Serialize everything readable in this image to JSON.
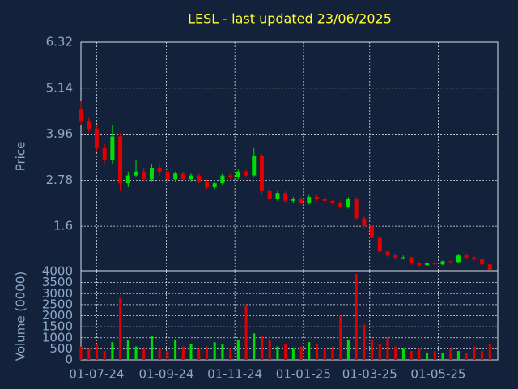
{
  "chart_data": {
    "type": "candlestick",
    "title": "LESL - last updated 23/06/2025",
    "ylabel": "Price",
    "y2label": "Volume (0000)",
    "up_color": "#00e000",
    "down_color": "#e00000",
    "grid": true,
    "xlim": [
      "2024-06-17",
      "2025-06-23"
    ],
    "xticks": [
      {
        "value": "2024-07-01",
        "label": "01-07-24"
      },
      {
        "value": "2024-09-01",
        "label": "01-09-24"
      },
      {
        "value": "2024-11-01",
        "label": "01-11-24"
      },
      {
        "value": "2025-01-01",
        "label": "01-01-25"
      },
      {
        "value": "2025-03-01",
        "label": "01-03-25"
      },
      {
        "value": "2025-05-01",
        "label": "01-05-25"
      }
    ],
    "ylim": [
      0.46,
      6.32
    ],
    "yticks": [
      1.6,
      2.78,
      3.96,
      5.14,
      6.32
    ],
    "y2lim": [
      0,
      4000
    ],
    "y2ticks": [
      0,
      500,
      1000,
      1500,
      2000,
      2500,
      3000,
      3500,
      4000
    ],
    "x": [
      "2024-06-17",
      "2024-06-24",
      "2024-07-01",
      "2024-07-08",
      "2024-07-15",
      "2024-07-22",
      "2024-07-29",
      "2024-08-05",
      "2024-08-12",
      "2024-08-19",
      "2024-08-26",
      "2024-09-02",
      "2024-09-09",
      "2024-09-16",
      "2024-09-23",
      "2024-09-30",
      "2024-10-07",
      "2024-10-14",
      "2024-10-21",
      "2024-10-28",
      "2024-11-04",
      "2024-11-11",
      "2024-11-18",
      "2024-11-25",
      "2024-12-02",
      "2024-12-09",
      "2024-12-16",
      "2024-12-23",
      "2024-12-30",
      "2025-01-06",
      "2025-01-13",
      "2025-01-20",
      "2025-01-27",
      "2025-02-03",
      "2025-02-10",
      "2025-02-17",
      "2025-02-24",
      "2025-03-03",
      "2025-03-10",
      "2025-03-17",
      "2025-03-24",
      "2025-03-31",
      "2025-04-07",
      "2025-04-14",
      "2025-04-21",
      "2025-04-28",
      "2025-05-05",
      "2025-05-12",
      "2025-05-19",
      "2025-05-26",
      "2025-06-02",
      "2025-06-09",
      "2025-06-16"
    ],
    "open": [
      4.6,
      4.3,
      4.1,
      3.6,
      3.3,
      3.9,
      2.7,
      2.9,
      3.0,
      2.8,
      3.1,
      3.0,
      2.8,
      2.95,
      2.8,
      2.9,
      2.75,
      2.6,
      2.7,
      2.9,
      2.85,
      3.0,
      2.9,
      3.4,
      2.5,
      2.3,
      2.45,
      2.25,
      2.3,
      2.2,
      2.35,
      2.3,
      2.25,
      2.2,
      2.1,
      2.3,
      1.8,
      1.6,
      1.3,
      0.95,
      0.85,
      0.8,
      0.8,
      0.65,
      0.6,
      0.65,
      0.62,
      0.7,
      0.68,
      0.85,
      0.8,
      0.75,
      0.62
    ],
    "high": [
      4.8,
      4.4,
      4.2,
      3.7,
      4.2,
      4.0,
      3.0,
      3.3,
      3.1,
      3.2,
      3.2,
      3.1,
      3.0,
      3.0,
      2.95,
      2.95,
      2.8,
      2.75,
      2.95,
      2.95,
      3.05,
      3.05,
      3.6,
      3.45,
      2.6,
      2.5,
      2.5,
      2.35,
      2.35,
      2.4,
      2.4,
      2.35,
      2.3,
      2.25,
      2.35,
      2.35,
      1.85,
      1.65,
      1.35,
      1.0,
      0.9,
      0.85,
      0.82,
      0.68,
      0.68,
      0.68,
      0.72,
      0.72,
      0.88,
      0.9,
      0.82,
      0.78,
      0.64
    ],
    "low": [
      4.2,
      4.0,
      3.5,
      3.2,
      3.2,
      2.5,
      2.6,
      2.85,
      2.75,
      2.75,
      2.9,
      2.75,
      2.75,
      2.75,
      2.75,
      2.7,
      2.55,
      2.55,
      2.65,
      2.8,
      2.8,
      2.85,
      2.85,
      2.4,
      2.2,
      2.25,
      2.2,
      2.2,
      2.15,
      2.15,
      2.25,
      2.2,
      2.15,
      2.05,
      2.05,
      1.75,
      1.55,
      1.25,
      0.9,
      0.8,
      0.75,
      0.75,
      0.6,
      0.55,
      0.58,
      0.58,
      0.6,
      0.65,
      0.66,
      0.76,
      0.72,
      0.6,
      0.45
    ],
    "close": [
      4.3,
      4.1,
      3.6,
      3.3,
      3.9,
      2.7,
      2.9,
      3.0,
      2.8,
      3.1,
      3.0,
      2.8,
      2.95,
      2.8,
      2.9,
      2.75,
      2.6,
      2.7,
      2.9,
      2.85,
      3.0,
      2.9,
      3.4,
      2.5,
      2.3,
      2.45,
      2.25,
      2.3,
      2.2,
      2.35,
      2.3,
      2.25,
      2.2,
      2.1,
      2.3,
      1.8,
      1.6,
      1.3,
      0.95,
      0.85,
      0.8,
      0.8,
      0.65,
      0.6,
      0.65,
      0.62,
      0.7,
      0.68,
      0.85,
      0.8,
      0.75,
      0.62,
      0.48
    ],
    "volume": [
      600,
      500,
      700,
      400,
      800,
      2800,
      900,
      600,
      500,
      1100,
      500,
      400,
      900,
      600,
      700,
      500,
      600,
      800,
      700,
      500,
      900,
      2500,
      1200,
      1100,
      900,
      600,
      700,
      500,
      600,
      800,
      700,
      500,
      600,
      2000,
      900,
      3900,
      1600,
      900,
      700,
      1000,
      600,
      500,
      400,
      500,
      300,
      400,
      300,
      500,
      400,
      300,
      600,
      400,
      700
    ]
  }
}
